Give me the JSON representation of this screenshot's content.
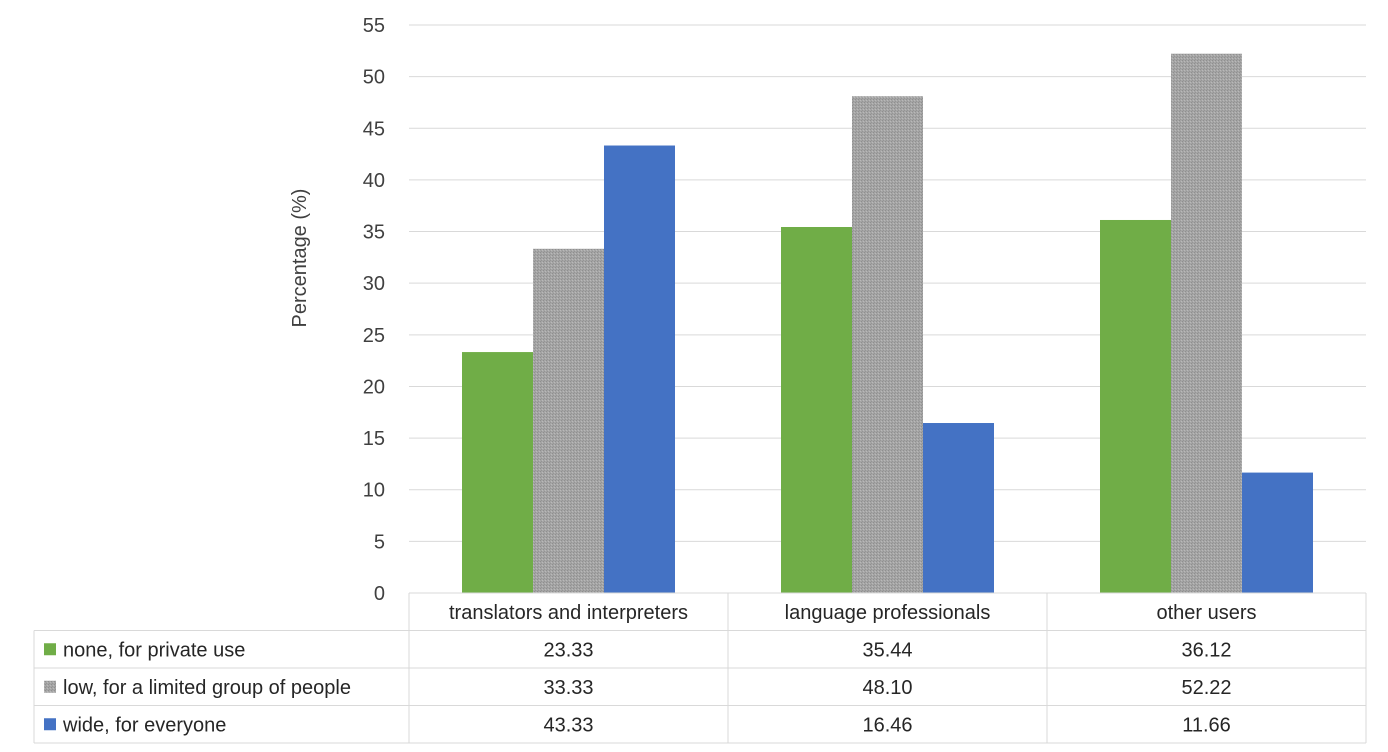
{
  "chart_data": {
    "type": "bar",
    "ylabel": "Percentage (%)",
    "ylim": [
      0,
      55
    ],
    "yticks": [
      0,
      5,
      10,
      15,
      20,
      25,
      30,
      35,
      40,
      45,
      50,
      55
    ],
    "grid": true,
    "categories": [
      "translators and interpreters",
      "language professionals",
      "other users"
    ],
    "series": [
      {
        "name": "none, for private use",
        "color": "#70AD47",
        "values": [
          23.33,
          35.44,
          36.12
        ],
        "labels": [
          "23.33",
          "35.44",
          "36.12"
        ]
      },
      {
        "name": "low, for a limited group of people",
        "color": "#A5A5A5",
        "values": [
          33.33,
          48.1,
          52.22
        ],
        "labels": [
          "33.33",
          "48.10",
          "52.22"
        ]
      },
      {
        "name": "wide, for everyone",
        "color": "#4472C4",
        "values": [
          43.33,
          16.46,
          11.66
        ],
        "labels": [
          "43.33",
          "16.46",
          "11.66"
        ]
      }
    ],
    "legend": "data-table"
  }
}
